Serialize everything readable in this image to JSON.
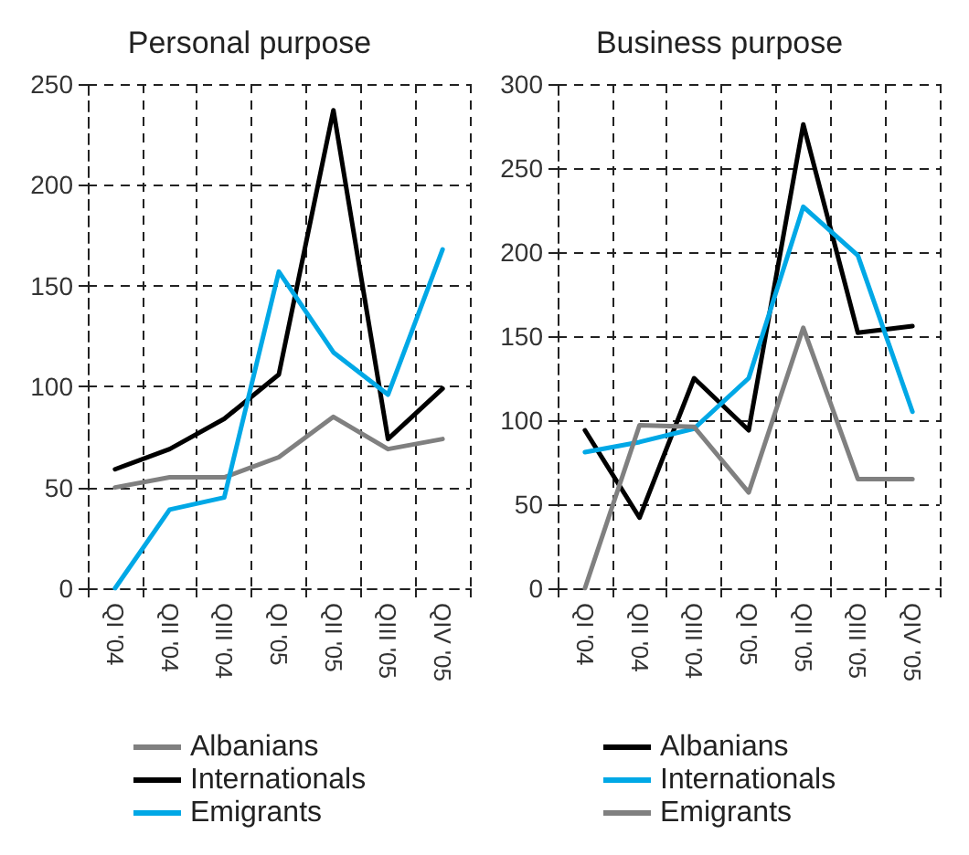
{
  "chart_data": [
    {
      "type": "line",
      "title": "Personal purpose",
      "categories": [
        "QI '04",
        "QII '04",
        "QIII '04",
        "QI '05",
        "QII '05",
        "QIII '05",
        "QIV '05"
      ],
      "series": [
        {
          "name": "Albanians",
          "color": "#808080",
          "values": [
            50,
            55,
            55,
            65,
            85,
            69,
            74
          ]
        },
        {
          "name": "Internationals",
          "color": "#000000",
          "values": [
            59,
            69,
            84,
            106,
            237,
            74,
            99
          ]
        },
        {
          "name": "Emigrants",
          "color": "#00a8e6",
          "values": [
            0,
            39,
            45,
            157,
            117,
            96,
            168
          ]
        }
      ],
      "ylim": [
        0,
        250
      ],
      "yticks": [
        0,
        50,
        100,
        150,
        200,
        250
      ],
      "grid": true,
      "legend": "bottom",
      "marker": "none",
      "line_style": "solid"
    },
    {
      "type": "line",
      "title": "Business purpose",
      "categories": [
        "QI '04",
        "QII '04",
        "QIII '04",
        "QI '05",
        "QII '05",
        "QIII '05",
        "QIV '05"
      ],
      "series": [
        {
          "name": "Albanians",
          "color": "#000000",
          "values": [
            94,
            42,
            125,
            94,
            276,
            152,
            156
          ]
        },
        {
          "name": "Internationals",
          "color": "#00a8e6",
          "values": [
            81,
            87,
            95,
            125,
            227,
            198,
            105
          ]
        },
        {
          "name": "Emigrants",
          "color": "#808080",
          "values": [
            0,
            97,
            96,
            57,
            155,
            65,
            65
          ]
        }
      ],
      "ylim": [
        0,
        300
      ],
      "yticks": [
        0,
        50,
        100,
        150,
        200,
        250,
        300
      ],
      "grid": true,
      "legend": "bottom",
      "marker": "none",
      "line_style": "solid"
    }
  ]
}
